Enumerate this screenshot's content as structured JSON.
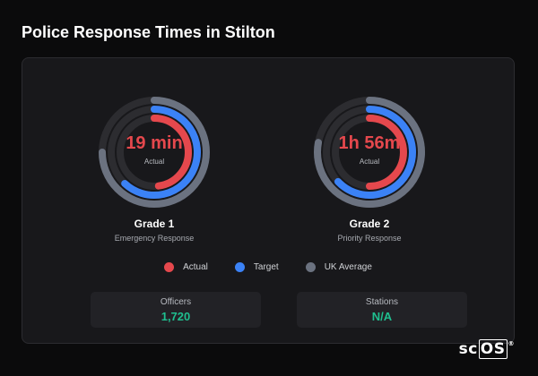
{
  "page": {
    "title": "Police Response Times in Stilton"
  },
  "gauges": [
    {
      "value": "19 min",
      "sub": "Actual",
      "title": "Grade 1",
      "subtitle": "Emergency Response",
      "arcs": {
        "uk_average": 0.75,
        "target": 0.62,
        "actual": 0.48
      }
    },
    {
      "value": "1h 56m",
      "sub": "Actual",
      "title": "Grade 2",
      "subtitle": "Priority Response",
      "arcs": {
        "uk_average": 0.78,
        "target": 0.63,
        "actual": 0.5
      }
    }
  ],
  "legend": [
    {
      "label": "Actual",
      "color": "#e5484d"
    },
    {
      "label": "Target",
      "color": "#3b82f6"
    },
    {
      "label": "UK Average",
      "color": "#6b7280"
    }
  ],
  "stats": [
    {
      "label": "Officers",
      "value": "1,720"
    },
    {
      "label": "Stations",
      "value": "N/A"
    }
  ],
  "colors": {
    "actual": "#e5484d",
    "target": "#3b82f6",
    "uk_average": "#6b7280",
    "track": "#2c2c30",
    "accent_green": "#1fbf8f"
  },
  "logo": {
    "prefix": "sc",
    "box": "OS",
    "mark": "®"
  }
}
